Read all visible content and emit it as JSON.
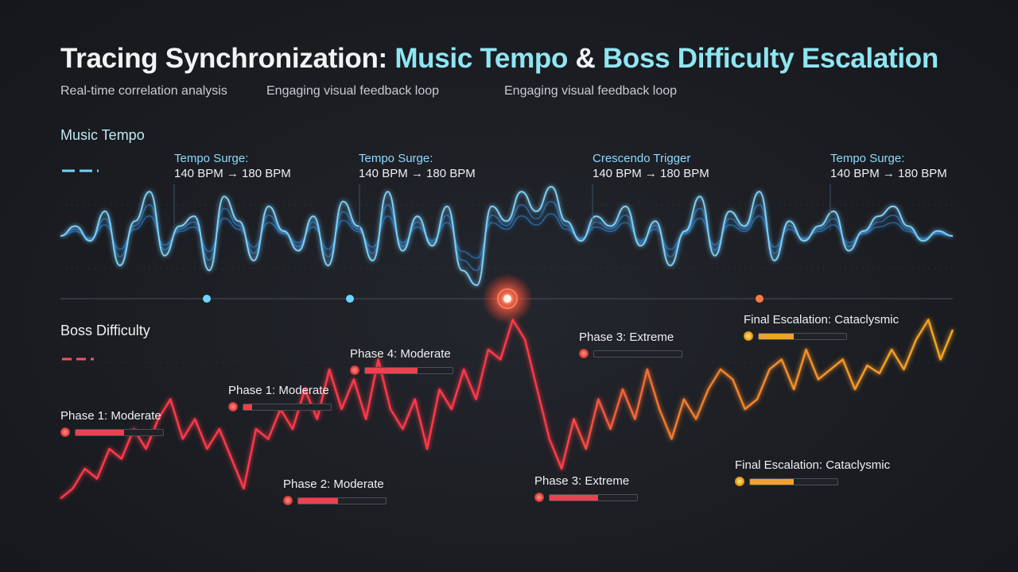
{
  "header": {
    "title_part1": "Tracing Synchronization: ",
    "title_part2": "Music Tempo",
    "title_part3": " & ",
    "title_part4": "Boss Difficulty Escalation",
    "subtitles": [
      "Real-time correlation analysis",
      "Engaging visual feedback loop",
      "Engaging visual feedback loop"
    ]
  },
  "sections": {
    "music": "Music Tempo",
    "boss": "Boss Difficulty"
  },
  "colors": {
    "tempo": "#4ab8ff",
    "difficulty_low": "#ff3848",
    "difficulty_high": "#f5a623",
    "peak": "#ff4a3a"
  },
  "tempo_annotations": [
    {
      "line1": "Tempo Surge:",
      "line2": "140 BPM → 180 BPM"
    },
    {
      "line1": "Tempo Surge:",
      "line2": "140 BPM → 180 BPM"
    },
    {
      "line1": "Crescendo Trigger",
      "line2": "140 BPM → 180 BPM"
    },
    {
      "line1": "Tempo Surge:",
      "line2": "140 BPM → 180 BPM"
    }
  ],
  "phases": [
    {
      "label": "Phase 1: Moderate",
      "level": 0.55,
      "tone": "red"
    },
    {
      "label": "Phase 1: Moderate",
      "level": 0.1,
      "tone": "red"
    },
    {
      "label": "Phase 2: Moderate",
      "level": 0.45,
      "tone": "red"
    },
    {
      "label": "Phase 4: Moderate",
      "level": 0.6,
      "tone": "red"
    },
    {
      "label": "Phase 3: Extreme",
      "level": 0.0,
      "tone": "red"
    },
    {
      "label": "Phase 3: Extreme",
      "level": 0.55,
      "tone": "red"
    },
    {
      "label": "Final Escalation: Cataclysmic",
      "level": 0.4,
      "tone": "orange"
    },
    {
      "label": "Final Escalation: Cataclysmic",
      "level": 0.5,
      "tone": "orange"
    }
  ],
  "chart_data": [
    {
      "type": "line",
      "series": [
        {
          "name": "Music Tempo",
          "values": [
            0,
            0.2,
            -0.1,
            0.5,
            -0.6,
            0.3,
            0.9,
            -0.4,
            0.2,
            0.4,
            -0.7,
            0.8,
            0.3,
            -0.5,
            0.6,
            0.1,
            -0.3,
            0.4,
            -0.6,
            0.7,
            0.2,
            -0.5,
            0.9,
            -0.3,
            0.4,
            -0.2,
            0.6,
            -0.7,
            -1.0,
            0.6,
            0.3,
            0.9,
            0.5,
            1.0,
            0.3,
            -0.1,
            0.4,
            0.2,
            0.6,
            -0.2,
            0.3,
            -0.6,
            0.1,
            0.8,
            -0.4,
            0.5,
            0.2,
            0.9,
            -0.5,
            0.3,
            -0.1,
            0.2,
            0.5,
            -0.3,
            0.1,
            0.4,
            0.6,
            0.2,
            -0.1,
            0.1,
            0
          ]
        }
      ]
    },
    {
      "type": "line",
      "series": [
        {
          "name": "Boss Difficulty",
          "values": [
            0.05,
            0.1,
            0.2,
            0.15,
            0.3,
            0.25,
            0.4,
            0.3,
            0.45,
            0.55,
            0.35,
            0.45,
            0.3,
            0.4,
            0.25,
            0.1,
            0.4,
            0.35,
            0.5,
            0.4,
            0.6,
            0.45,
            0.7,
            0.5,
            0.65,
            0.45,
            0.75,
            0.5,
            0.4,
            0.55,
            0.3,
            0.6,
            0.5,
            0.7,
            0.55,
            0.8,
            0.75,
            0.95,
            0.85,
            0.6,
            0.35,
            0.2,
            0.45,
            0.3,
            0.55,
            0.4,
            0.6,
            0.45,
            0.7,
            0.5,
            0.35,
            0.55,
            0.45,
            0.6,
            0.7,
            0.65,
            0.5,
            0.55,
            0.7,
            0.75,
            0.6,
            0.8,
            0.65,
            0.7,
            0.75,
            0.6,
            0.72,
            0.68,
            0.8,
            0.7,
            0.85,
            0.95,
            0.75,
            0.9
          ]
        }
      ]
    }
  ]
}
